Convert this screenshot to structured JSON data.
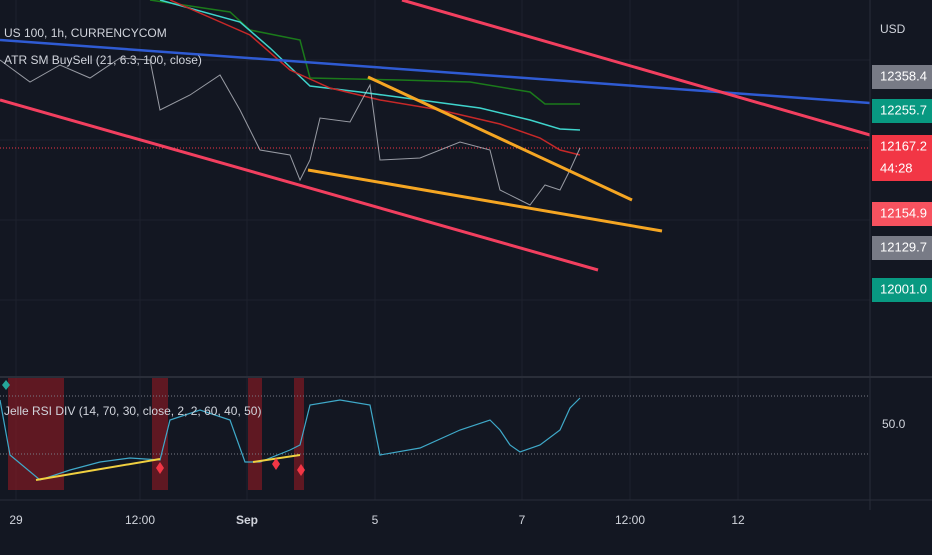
{
  "header": {
    "symbol": "US 100, 1h, CURRENCYCOM",
    "indicator": "ATR SM BuySell (21, 6.3, 100, close)"
  },
  "price_axis": {
    "currency": "USD",
    "labels": [
      "12358.4",
      "12255.7",
      "12167.2",
      "44:28",
      "12154.9",
      "12129.7",
      "12001.0"
    ]
  },
  "rsi": {
    "title": "Jelle RSI DIV (14, 70, 30, close, 2, 2, 60, 40, 50)",
    "level": "50.0"
  },
  "time_axis": {
    "labels": [
      "29",
      "12:00",
      "Sep",
      "5",
      "7",
      "12:00",
      "12"
    ]
  }
}
